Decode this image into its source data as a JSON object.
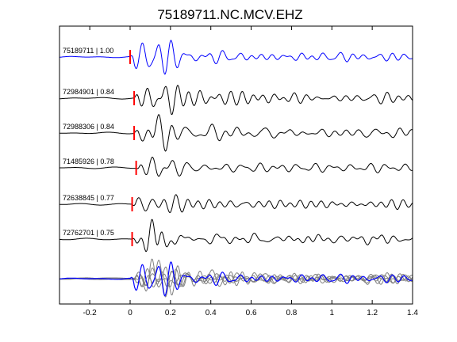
{
  "chart_data": {
    "type": "line",
    "title": "75189711.NC.MCV.EHZ",
    "xlabel": "",
    "ylabel": "",
    "xlim": [
      -0.35,
      1.4
    ],
    "xticks": [
      -0.2,
      0,
      0.2,
      0.4,
      0.6,
      0.8,
      1,
      1.2,
      1.4
    ],
    "xtick_labels": [
      "-0.2",
      "0",
      "0.2",
      "0.4",
      "0.6",
      "0.8",
      "1",
      "1.2",
      "1.4"
    ],
    "grid": false,
    "colors": {
      "reference": "#0000ff",
      "trace": "#000000",
      "overlay": "#808080",
      "pick_marker": "#ff0000",
      "axes": "#000000"
    },
    "series": [
      {
        "label": "75189711 | 1.00",
        "pick_time": 0.0,
        "color": "#0000ff"
      },
      {
        "label": "72984901 | 0.84",
        "pick_time": 0.02,
        "color": "#000000"
      },
      {
        "label": "72988306 | 0.84",
        "pick_time": 0.02,
        "color": "#000000"
      },
      {
        "label": "71485926 | 0.78",
        "pick_time": 0.03,
        "color": "#000000"
      },
      {
        "label": "72638845 | 0.77",
        "pick_time": 0.01,
        "color": "#000000"
      },
      {
        "label": "72762701 | 0.75",
        "pick_time": 0.01,
        "color": "#000000"
      }
    ],
    "overlay_panel": true
  }
}
